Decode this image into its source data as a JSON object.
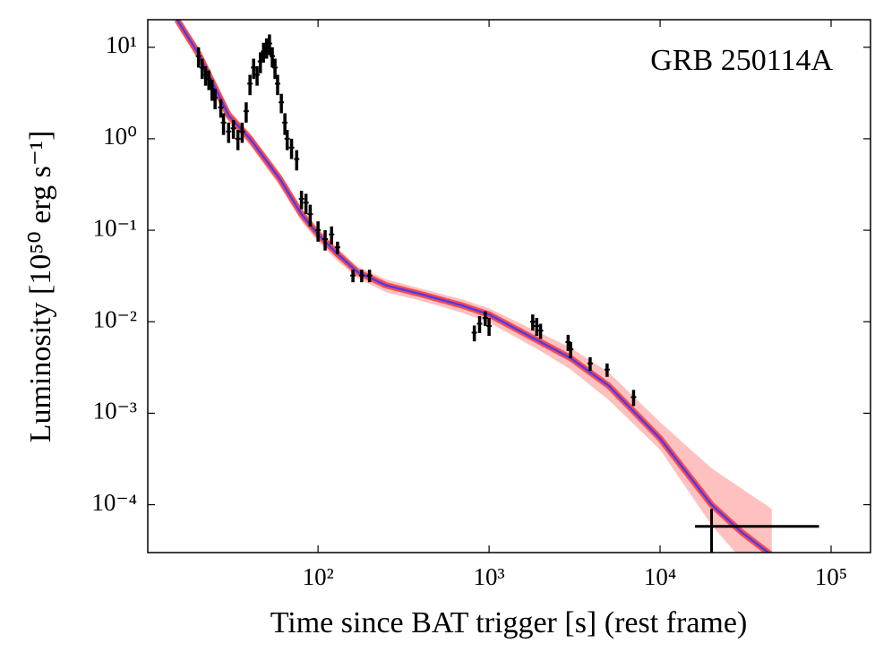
{
  "chart_data": {
    "type": "scatter",
    "annotation": "GRB 250114A",
    "xlabel": "Time since BAT trigger [s] (rest frame)",
    "ylabel": "Luminosity [10⁵⁰ erg s⁻¹]",
    "xlog": true,
    "ylog": true,
    "xlim": [
      10.1,
      170000
    ],
    "ylim": [
      3e-05,
      20
    ],
    "xticks": [
      {
        "value": 100,
        "label": "10²"
      },
      {
        "value": 1000,
        "label": "10³"
      },
      {
        "value": 10000,
        "label": "10⁴"
      },
      {
        "value": 100000,
        "label": "10⁵"
      }
    ],
    "yticks": [
      {
        "value": 10,
        "label": "10¹"
      },
      {
        "value": 1,
        "label": "10⁰"
      },
      {
        "value": 0.1,
        "label": "10⁻¹"
      },
      {
        "value": 0.01,
        "label": "10⁻²"
      },
      {
        "value": 0.001,
        "label": "10⁻³"
      },
      {
        "value": 0.0001,
        "label": "10⁻⁴"
      }
    ],
    "points": {
      "color": "#000000",
      "x": [
        20,
        21,
        22,
        23,
        24,
        25,
        27,
        28,
        30,
        32,
        34,
        36,
        38,
        40,
        42,
        44,
        46,
        48,
        50,
        52,
        54,
        56,
        58,
        61,
        64,
        66,
        70,
        75,
        80,
        85,
        90,
        100,
        110,
        120,
        130,
        160,
        180,
        200,
        820,
        880,
        950,
        1000,
        1800,
        1900,
        2000,
        2900,
        3000,
        3900,
        4900,
        7000
      ],
      "y": [
        8,
        6,
        5,
        4.5,
        3.5,
        2.8,
        2.2,
        1.5,
        1.2,
        1.3,
        1.0,
        1.2,
        2,
        4,
        6,
        5,
        7,
        9,
        10,
        11,
        8,
        6,
        4,
        2.5,
        1.5,
        1.0,
        0.8,
        0.6,
        0.22,
        0.2,
        0.15,
        0.1,
        0.08,
        0.09,
        0.065,
        0.032,
        0.032,
        0.032,
        0.0076,
        0.0095,
        0.011,
        0.009,
        0.01,
        0.009,
        0.008,
        0.006,
        0.005,
        0.0035,
        0.003,
        0.0015
      ],
      "yerr": [
        2,
        1.5,
        1.2,
        1.1,
        0.9,
        0.7,
        0.5,
        0.4,
        0.3,
        0.3,
        0.25,
        0.3,
        0.5,
        1,
        1.5,
        1.2,
        1.8,
        2.2,
        2.5,
        2.8,
        2,
        1.5,
        1,
        0.6,
        0.4,
        0.25,
        0.2,
        0.15,
        0.05,
        0.05,
        0.04,
        0.025,
        0.02,
        0.02,
        0.01,
        0.005,
        0.005,
        0.005,
        0.0015,
        0.002,
        0.002,
        0.002,
        0.002,
        0.002,
        0.0015,
        0.0012,
        0.001,
        0.0006,
        0.0005,
        0.0003
      ]
    },
    "binned_point": {
      "x": 20000,
      "xlow": 16000,
      "xhigh": 85000,
      "y": 5.8e-05,
      "ylow": 3e-05,
      "yhigh": 9e-05,
      "color": "#000000"
    },
    "model": {
      "color": "#4a3cf0",
      "x": [
        15,
        20,
        30,
        40,
        60,
        80,
        100,
        130,
        170,
        250,
        400,
        700,
        1000,
        2000,
        3000,
        5000,
        10000,
        20000,
        30000,
        45000
      ],
      "y": [
        20,
        8.5,
        1.8,
        1.0,
        0.36,
        0.15,
        0.09,
        0.055,
        0.035,
        0.025,
        0.02,
        0.015,
        0.012,
        0.006,
        0.004,
        0.002,
        0.00053,
        0.0001,
        5e-05,
        2.8e-05
      ]
    },
    "band": {
      "color": "#ff4a4a",
      "upper": [
        23,
        9.8,
        2.1,
        1.15,
        0.42,
        0.175,
        0.105,
        0.064,
        0.04,
        0.029,
        0.023,
        0.0175,
        0.014,
        0.0075,
        0.0052,
        0.0028,
        0.0008,
        0.00025,
        0.00015,
        9e-05
      ],
      "lower": [
        17,
        7.2,
        1.5,
        0.85,
        0.3,
        0.125,
        0.075,
        0.046,
        0.03,
        0.021,
        0.017,
        0.0125,
        0.0098,
        0.0048,
        0.003,
        0.0014,
        0.0004,
        6e-05,
        2.5e-05,
        1e-05
      ]
    }
  }
}
